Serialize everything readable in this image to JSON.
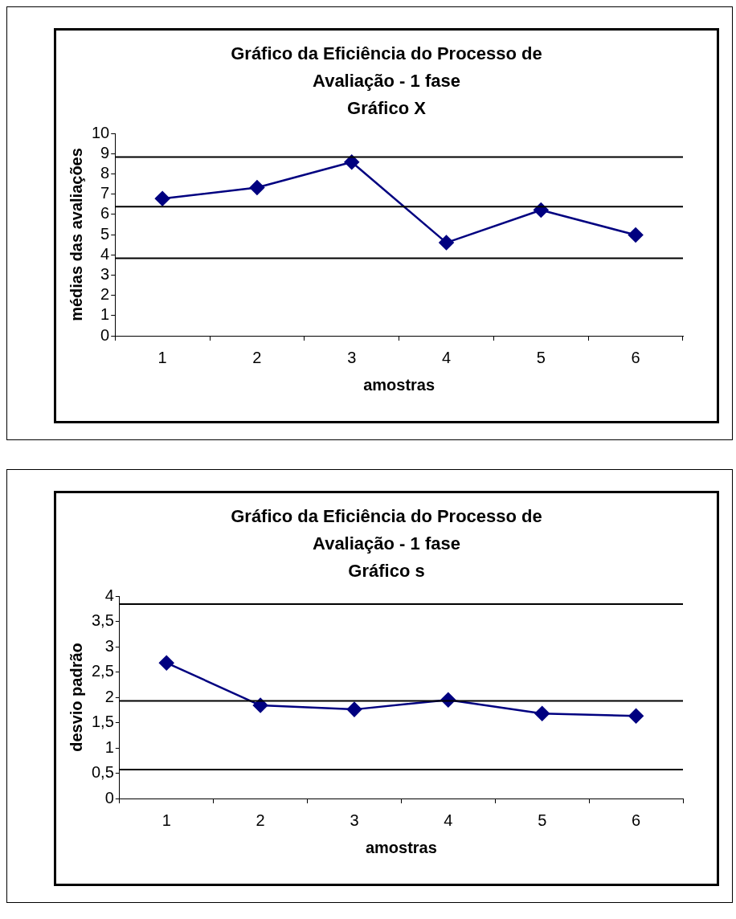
{
  "chart_data": [
    {
      "type": "line",
      "title": "Gráfico da Eficiência do Processo de Avaliação - 1 fase",
      "subtitle": "Gráfico X",
      "xlabel": "amostras",
      "ylabel": "médias das avaliações",
      "categories": [
        "1",
        "2",
        "3",
        "4",
        "5",
        "6"
      ],
      "series": [
        {
          "color": "#000080",
          "values": [
            6.78,
            7.32,
            8.58,
            4.6,
            6.21,
            4.98
          ]
        }
      ],
      "ylim": [
        0,
        10
      ],
      "yticks": [
        0,
        1,
        2,
        3,
        4,
        5,
        6,
        7,
        8,
        9,
        10
      ],
      "grid": false,
      "marker": "diamond",
      "line_style": "solid",
      "ref_lines": [
        {
          "axis": "y",
          "value": 8.83,
          "color": "#000000"
        },
        {
          "axis": "y",
          "value": 6.38,
          "color": "#000000"
        },
        {
          "axis": "y",
          "value": 3.83,
          "color": "#000000"
        }
      ]
    },
    {
      "type": "line",
      "title": "Gráfico da Eficiência do Processo de Avaliação - 1 fase",
      "subtitle": "Gráfico s",
      "xlabel": "amostras",
      "ylabel": "desvio padrão",
      "categories": [
        "1",
        "2",
        "3",
        "4",
        "5",
        "6"
      ],
      "series": [
        {
          "color": "#000080",
          "values": [
            2.68,
            1.84,
            1.76,
            1.95,
            1.68,
            1.63
          ]
        }
      ],
      "ylim": [
        0,
        4
      ],
      "yticks": [
        0,
        {
          "value": 0.5,
          "label": "0,5"
        },
        1,
        {
          "value": 1.5,
          "label": "1,5"
        },
        2,
        {
          "value": 2.5,
          "label": "2,5"
        },
        3,
        {
          "value": 3.5,
          "label": "3,5"
        },
        4
      ],
      "grid": false,
      "marker": "diamond",
      "line_style": "solid",
      "ref_lines": [
        {
          "axis": "y",
          "value": 3.84,
          "color": "#000000"
        },
        {
          "axis": "y",
          "value": 1.93,
          "color": "#000000"
        },
        {
          "axis": "y",
          "value": 0.57,
          "color": "#000000"
        }
      ]
    }
  ]
}
